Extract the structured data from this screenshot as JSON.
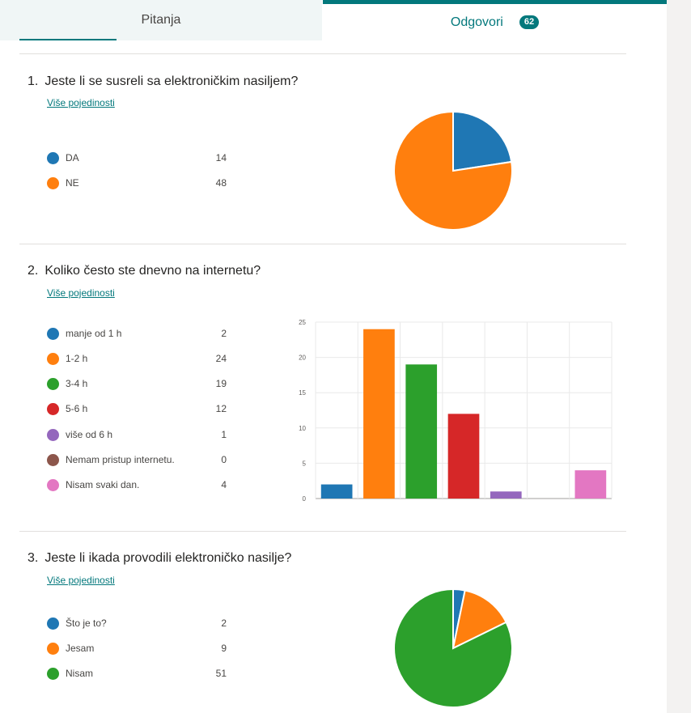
{
  "tabs": {
    "questions_label": "Pitanja",
    "responses_label": "Odgovori",
    "responses_count": "62"
  },
  "more_details": "Više pojedinosti",
  "questions": [
    {
      "number": "1.",
      "title": "Jeste li se susreli sa elektroničkim nasiljem?",
      "chart_type": "pie",
      "options": [
        {
          "label": "DA",
          "count": "14",
          "color": "#1f77b4"
        },
        {
          "label": "NE",
          "count": "48",
          "color": "#ff7f0e"
        }
      ]
    },
    {
      "number": "2.",
      "title": "Koliko često ste dnevno na internetu?",
      "chart_type": "bar",
      "options": [
        {
          "label": "manje od 1 h",
          "count": "2",
          "color": "#1f77b4"
        },
        {
          "label": "1-2 h",
          "count": "24",
          "color": "#ff7f0e"
        },
        {
          "label": "3-4 h",
          "count": "19",
          "color": "#2ca02c"
        },
        {
          "label": "5-6 h",
          "count": "12",
          "color": "#d62728"
        },
        {
          "label": "više od 6 h",
          "count": "1",
          "color": "#9467bd"
        },
        {
          "label": "Nemam pristup internetu.",
          "count": "0",
          "color": "#8c564b"
        },
        {
          "label": "Nisam svaki dan.",
          "count": "4",
          "color": "#e377c2"
        }
      ]
    },
    {
      "number": "3.",
      "title": "Jeste li ikada provodili elektroničko nasilje?",
      "chart_type": "pie",
      "options": [
        {
          "label": "Što je to?",
          "count": "2",
          "color": "#1f77b4"
        },
        {
          "label": "Jesam",
          "count": "9",
          "color": "#ff7f0e"
        },
        {
          "label": "Nisam",
          "count": "51",
          "color": "#2ca02c"
        }
      ]
    }
  ],
  "chart_data": [
    {
      "type": "pie",
      "categories": [
        "DA",
        "NE"
      ],
      "values": [
        14,
        48
      ],
      "colors": [
        "#1f77b4",
        "#ff7f0e"
      ]
    },
    {
      "type": "bar",
      "categories": [
        "manje od 1 h",
        "1-2 h",
        "3-4 h",
        "5-6 h",
        "više od 6 h",
        "Nemam pristup internetu.",
        "Nisam svaki dan."
      ],
      "values": [
        2,
        24,
        19,
        12,
        1,
        0,
        4
      ],
      "colors": [
        "#1f77b4",
        "#ff7f0e",
        "#2ca02c",
        "#d62728",
        "#9467bd",
        "#8c564b",
        "#e377c2"
      ],
      "yticks": [
        "0",
        "5",
        "10",
        "15",
        "20",
        "25"
      ],
      "ylim": [
        0,
        25
      ],
      "grid": true
    },
    {
      "type": "pie",
      "categories": [
        "Što je to?",
        "Jesam",
        "Nisam"
      ],
      "values": [
        2,
        9,
        51
      ],
      "colors": [
        "#1f77b4",
        "#ff7f0e",
        "#2ca02c"
      ]
    }
  ]
}
